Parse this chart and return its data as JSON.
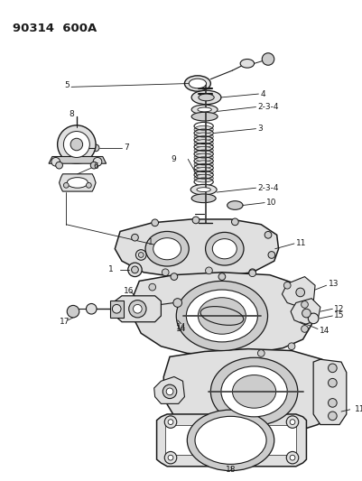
{
  "title": "90314  600A",
  "bg_color": "#ffffff",
  "line_color": "#1a1a1a",
  "fill_light": "#e0e0e0",
  "fill_mid": "#cccccc",
  "fill_dark": "#b0b0b0"
}
